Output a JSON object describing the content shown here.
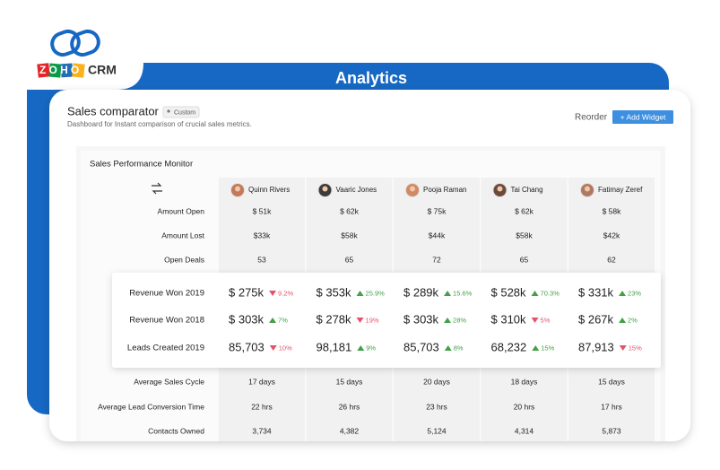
{
  "brand": {
    "logo": "ZOHO",
    "product": "CRM"
  },
  "banner": "Analytics",
  "header": {
    "title": "Sales comparator",
    "badge": "Custom",
    "subtitle": "Dashboard for Instant comparison of crucial sales metrics.",
    "reorder": "Reorder",
    "add_widget": "+ Add Widget"
  },
  "widget": {
    "title": "Sales Performance Monitor",
    "people": [
      "Quinn Rivers",
      "Vaaric Jones",
      "Pooja Raman",
      "Tai Chang",
      "Fatimay Zeref"
    ],
    "rows": [
      {
        "label": "Amount Open",
        "cells": [
          "$ 51k",
          "$ 62k",
          "$ 75k",
          "$ 62k",
          "$ 58k"
        ]
      },
      {
        "label": "Amount Lost",
        "cells": [
          "$33k",
          "$58k",
          "$44k",
          "$58k",
          "$42k"
        ]
      },
      {
        "label": "Open Deals",
        "cells": [
          "53",
          "65",
          "72",
          "65",
          "62"
        ]
      }
    ],
    "highlight_rows": [
      {
        "label": "Revenue Won 2019",
        "cells": [
          {
            "value": "$ 275k",
            "change": "9.2%",
            "dir": "down"
          },
          {
            "value": "$ 353k",
            "change": "25.9%",
            "dir": "up"
          },
          {
            "value": "$ 289k",
            "change": "15.6%",
            "dir": "up"
          },
          {
            "value": "$ 528k",
            "change": "70.3%",
            "dir": "up"
          },
          {
            "value": "$ 331k",
            "change": "23%",
            "dir": "up"
          }
        ]
      },
      {
        "label": "Revenue Won 2018",
        "cells": [
          {
            "value": "$ 303k",
            "change": "7%",
            "dir": "up"
          },
          {
            "value": "$ 278k",
            "change": "19%",
            "dir": "down"
          },
          {
            "value": "$ 303k",
            "change": "28%",
            "dir": "up"
          },
          {
            "value": "$ 310k",
            "change": "5%",
            "dir": "down"
          },
          {
            "value": "$ 267k",
            "change": "2%",
            "dir": "up"
          }
        ]
      },
      {
        "label": "Leads Created 2019",
        "cells": [
          {
            "value": "85,703",
            "change": "10%",
            "dir": "down"
          },
          {
            "value": "98,181",
            "change": "9%",
            "dir": "up"
          },
          {
            "value": "85,703",
            "change": "8%",
            "dir": "up"
          },
          {
            "value": "68,232",
            "change": "15%",
            "dir": "up"
          },
          {
            "value": "87,913",
            "change": "15%",
            "dir": "down"
          }
        ]
      }
    ],
    "bottom_rows": [
      {
        "label": "Average Sales Cycle",
        "cells": [
          "17 days",
          "15 days",
          "20 days",
          "18 days",
          "15 days"
        ]
      },
      {
        "label": "Average Lead Conversion Time",
        "cells": [
          "22 hrs",
          "26 hrs",
          "23 hrs",
          "20 hrs",
          "17 hrs"
        ]
      },
      {
        "label": "Contacts Owned",
        "cells": [
          "3,734",
          "4,382",
          "5,124",
          "4,314",
          "5,873"
        ]
      }
    ]
  }
}
